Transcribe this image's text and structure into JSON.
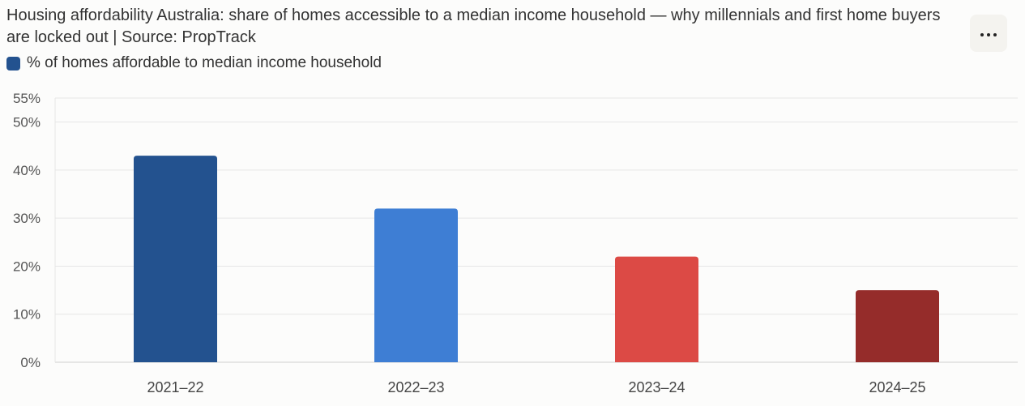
{
  "header": {
    "title": "Housing affordability Australia: share of homes accessible to a median income household — why millennials and first home buyers are locked out | Source: PropTrack",
    "more_icon": "more-horizontal-icon"
  },
  "colors": {
    "bar_2021_22": "#23528f",
    "bar_2022_23": "#3e7ed4",
    "bar_2023_24": "#dc4a45",
    "bar_2024_25": "#952c2a",
    "gridline": "#e6e6e6",
    "axis": "#cfcfcf"
  },
  "chart_data": {
    "type": "bar",
    "title": "Housing affordability Australia: share of homes accessible to a median income household — why millennials and first home buyers are locked out | Source: PropTrack",
    "categories": [
      "2021–22",
      "2022–23",
      "2023–24",
      "2024–25"
    ],
    "series": [
      {
        "name": "% of homes affordable to median income household",
        "values": [
          43,
          32,
          22,
          15
        ]
      }
    ],
    "ylim": [
      0,
      55
    ],
    "yticks": [
      0,
      10,
      20,
      30,
      40,
      50,
      55
    ],
    "ytick_labels": [
      "0%",
      "10%",
      "20%",
      "30%",
      "40%",
      "50%",
      "55%"
    ],
    "legend_position": "top-left",
    "grid": true
  }
}
